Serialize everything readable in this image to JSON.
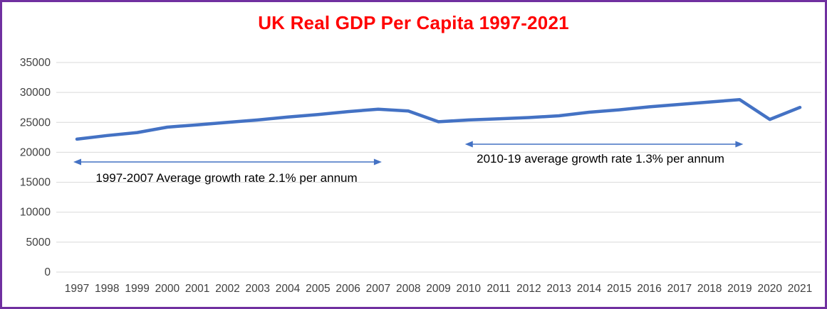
{
  "chart_data": {
    "type": "line",
    "title": "UK Real GDP Per Capita 1997-2021",
    "categories": [
      "1997",
      "1998",
      "1999",
      "2000",
      "2001",
      "2002",
      "2003",
      "2004",
      "2005",
      "2006",
      "2007",
      "2008",
      "2009",
      "2010",
      "2011",
      "2012",
      "2013",
      "2014",
      "2015",
      "2016",
      "2017",
      "2018",
      "2019",
      "2020",
      "2021"
    ],
    "series": [
      {
        "name": "UK Real GDP Per Capita",
        "values": [
          22200,
          22800,
          23300,
          24200,
          24600,
          25000,
          25400,
          25900,
          26300,
          26800,
          27200,
          26900,
          25100,
          25400,
          25600,
          25800,
          26100,
          26700,
          27100,
          27600,
          28000,
          28400,
          28800,
          25500,
          27500
        ]
      }
    ],
    "xlabel": "",
    "ylabel": "",
    "ylim": [
      0,
      35000
    ],
    "yticks": [
      0,
      5000,
      10000,
      15000,
      20000,
      25000,
      30000,
      35000
    ],
    "grid": true,
    "legend_position": "none",
    "annotations": [
      {
        "text": "1997-2007 Average growth rate 2.1% per annum",
        "arrow_from_year": "1997",
        "arrow_to_year": "2007"
      },
      {
        "text": "2010-19 average growth rate 1.3% per annum",
        "arrow_from_year": "2010",
        "arrow_to_year": "2019"
      }
    ]
  },
  "colors": {
    "title": "#FF0000",
    "line": "#4472C4",
    "arrow": "#4472C4",
    "border": "#7030A0",
    "gridline": "#D9D9D9",
    "axis_text": "#404040",
    "annotation_text": "#000000"
  }
}
